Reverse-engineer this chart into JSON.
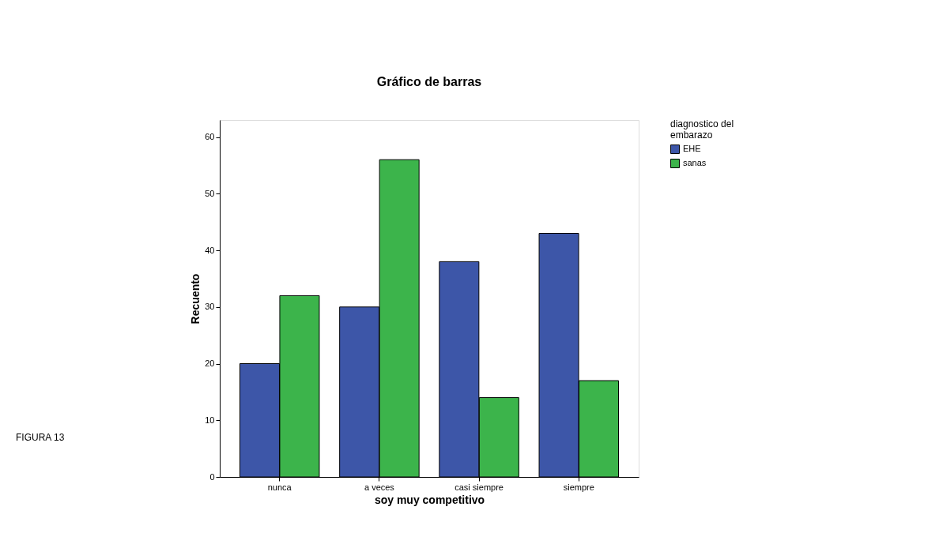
{
  "chart_data": {
    "type": "bar",
    "title": "Gráfico de barras",
    "xlabel": "soy muy competitivo",
    "ylabel": "Recuento",
    "legend_title": "diagnostico del embarazo",
    "categories": [
      "nunca",
      "a veces",
      "casi siempre",
      "siempre"
    ],
    "series": [
      {
        "name": "EHE",
        "color": "#3d56a8",
        "values": [
          20,
          30,
          38,
          43
        ]
      },
      {
        "name": "sanas",
        "color": "#3cb44b",
        "values": [
          32,
          56,
          14,
          17
        ]
      }
    ],
    "ylim": [
      0,
      63
    ],
    "yticks": [
      0,
      10,
      20,
      30,
      40,
      50,
      60
    ],
    "grid": false,
    "legend": "top right",
    "annotations": [
      "FIGURA 13"
    ]
  }
}
